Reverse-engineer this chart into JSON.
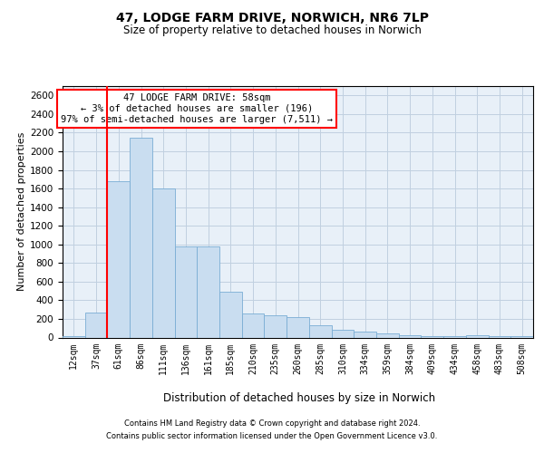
{
  "title": "47, LODGE FARM DRIVE, NORWICH, NR6 7LP",
  "subtitle": "Size of property relative to detached houses in Norwich",
  "xlabel": "Distribution of detached houses by size in Norwich",
  "ylabel": "Number of detached properties",
  "bar_color": "#c9ddf0",
  "bar_edge_color": "#7aadd4",
  "annotation_text": "47 LODGE FARM DRIVE: 58sqm\n← 3% of detached houses are smaller (196)\n97% of semi-detached houses are larger (7,511) →",
  "footer1": "Contains HM Land Registry data © Crown copyright and database right 2024.",
  "footer2": "Contains public sector information licensed under the Open Government Licence v3.0.",
  "categories": [
    "12sqm",
    "37sqm",
    "61sqm",
    "86sqm",
    "111sqm",
    "136sqm",
    "161sqm",
    "185sqm",
    "210sqm",
    "235sqm",
    "260sqm",
    "285sqm",
    "310sqm",
    "334sqm",
    "359sqm",
    "384sqm",
    "409sqm",
    "434sqm",
    "458sqm",
    "483sqm",
    "508sqm"
  ],
  "values": [
    12,
    265,
    1680,
    2150,
    1600,
    975,
    975,
    490,
    255,
    235,
    215,
    130,
    85,
    60,
    48,
    28,
    12,
    12,
    28,
    12,
    10
  ],
  "ylim": [
    0,
    2700
  ],
  "yticks": [
    0,
    200,
    400,
    600,
    800,
    1000,
    1200,
    1400,
    1600,
    1800,
    2000,
    2200,
    2400,
    2600
  ],
  "background_color": "#ffffff",
  "plot_bg_color": "#e8f0f8",
  "grid_color": "#c0d0e0"
}
